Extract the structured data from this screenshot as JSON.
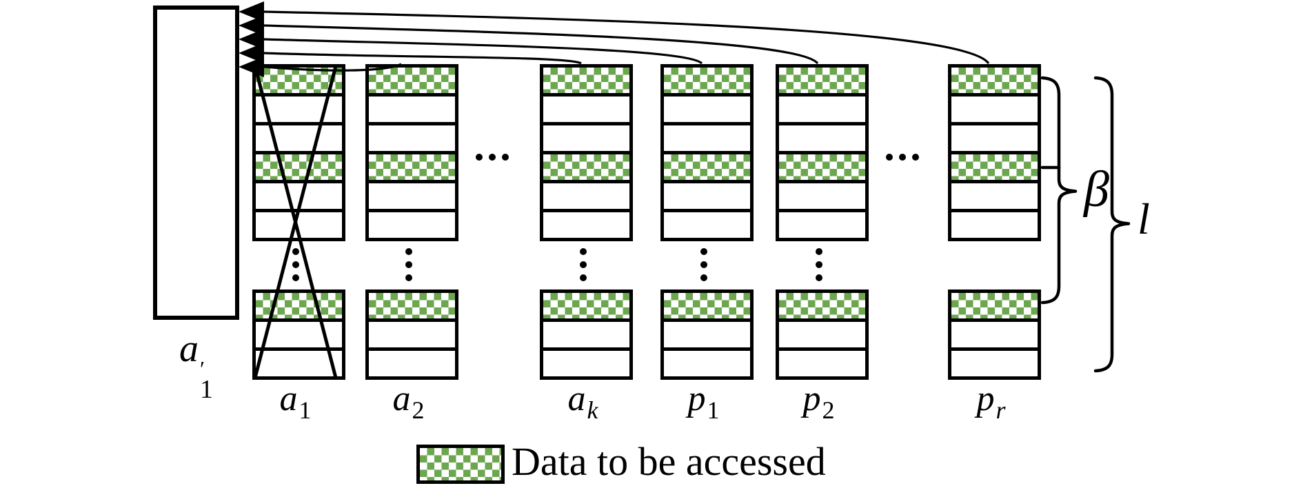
{
  "figure": {
    "colors": {
      "accessed_fill": "#6CA64F",
      "line": "#000000",
      "background": "#ffffff"
    }
  },
  "stack": {
    "label_base": "a",
    "label_prime": "′",
    "label_sub": "1"
  },
  "columns": [
    {
      "label": {
        "base": "a",
        "sub": "1",
        "sub_style": "normal"
      },
      "crossed": true,
      "gap_dots": true,
      "arc": false
    },
    {
      "label": {
        "base": "a",
        "sub": "2",
        "sub_style": "normal"
      },
      "crossed": false,
      "gap_dots": true,
      "arc": true
    },
    {
      "label": {
        "base": "a",
        "sub": "k",
        "sub_style": "italic"
      },
      "crossed": false,
      "gap_dots": true,
      "arc": true
    },
    {
      "label": {
        "base": "p",
        "sub": "1",
        "sub_style": "normal"
      },
      "crossed": false,
      "gap_dots": true,
      "arc": true
    },
    {
      "label": {
        "base": "p",
        "sub": "2",
        "sub_style": "normal"
      },
      "crossed": false,
      "gap_dots": true,
      "arc": true
    },
    {
      "label": {
        "base": "p",
        "sub": "r",
        "sub_style": "italic"
      },
      "crossed": false,
      "gap_dots": false,
      "arc": true
    }
  ],
  "row_pattern": {
    "block1": [
      "accessed",
      "plain",
      "plain",
      "accessed",
      "plain",
      "plain"
    ],
    "block2": [
      "accessed",
      "plain",
      "plain"
    ]
  },
  "ellipses": {
    "between_a2_ak": "⋯",
    "between_p2_pr": "⋯",
    "column_gap": "⋮"
  },
  "braces": {
    "beta_label": "β",
    "length_label": "l"
  },
  "legend": {
    "label": "Data to be accessed"
  }
}
